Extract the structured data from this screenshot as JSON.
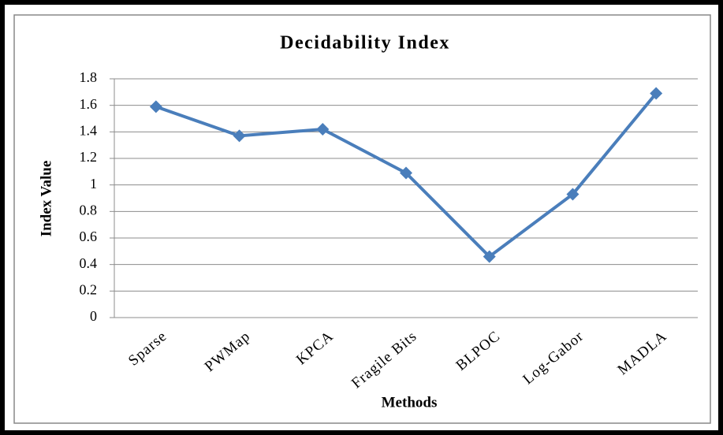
{
  "chart_data": {
    "type": "line",
    "title": "Decidability  Index",
    "x_label": "Methods",
    "y_label": "Index  Value",
    "categories": [
      "Sparse",
      "PWMap",
      "KPCA",
      "Fragile  Bits",
      "BLPOC",
      "Log-Gabor",
      "MADLA"
    ],
    "series": [
      {
        "name": "Decidability Index",
        "color": "#4a7ebb",
        "values": [
          1.59,
          1.37,
          1.42,
          1.09,
          0.46,
          0.93,
          1.69
        ]
      }
    ],
    "ylim": [
      0,
      1.8
    ],
    "yticks": [
      0,
      0.2,
      0.4,
      0.6,
      0.8,
      1,
      1.2,
      1.4,
      1.6,
      1.8
    ],
    "grid": true,
    "legend": false
  }
}
